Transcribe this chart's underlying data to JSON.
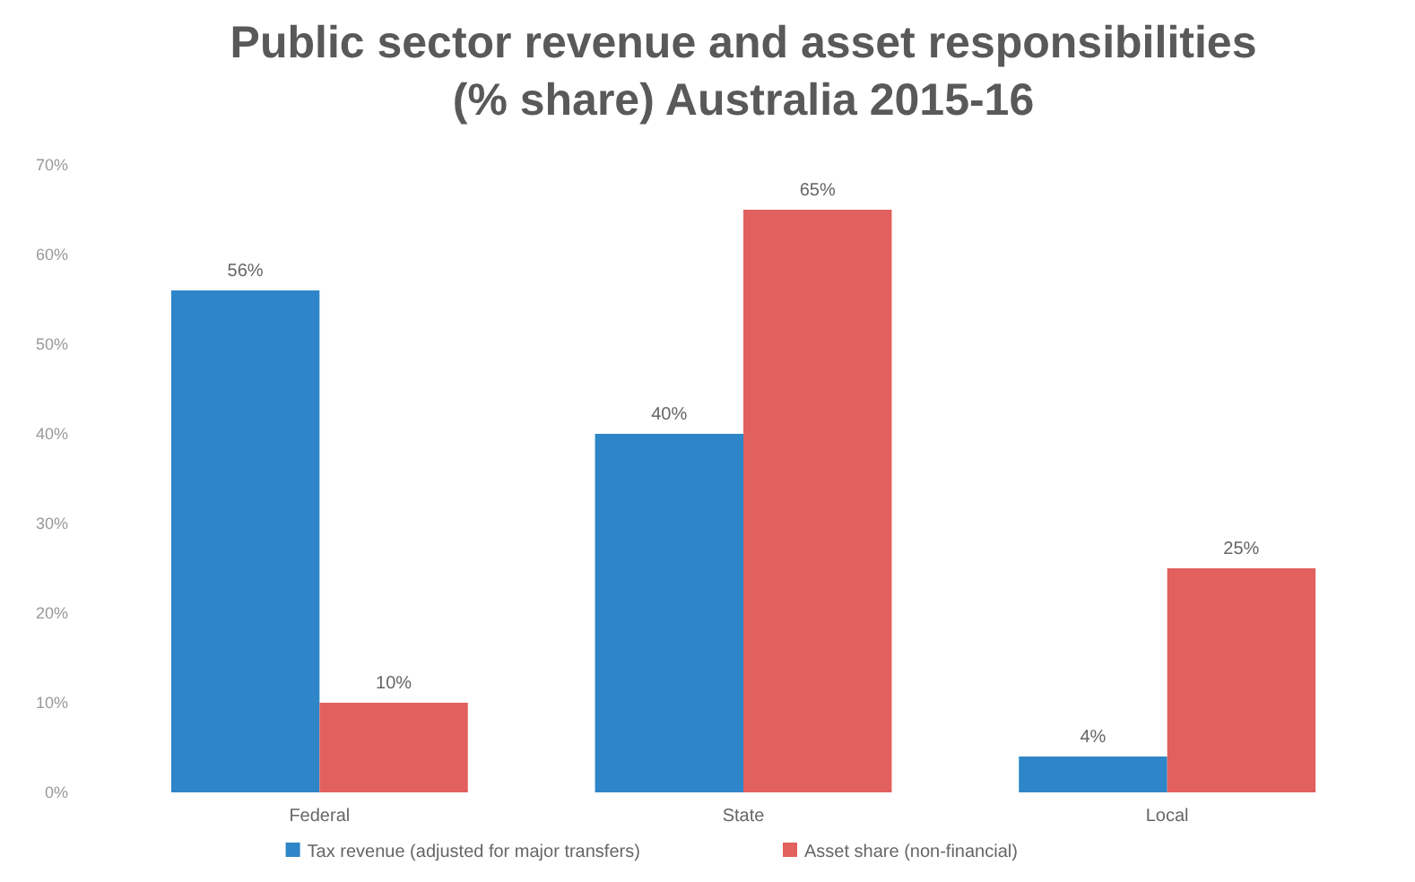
{
  "chart_data": {
    "type": "bar",
    "title": "Public sector revenue and asset responsibilities (% share) Australia 2015-16",
    "categories": [
      "Federal",
      "State",
      "Local"
    ],
    "series": [
      {
        "name": "Tax revenue (adjusted for major transfers)",
        "color": "#2e86c8",
        "values": [
          56,
          40,
          4
        ],
        "value_labels": [
          "56%",
          "40%",
          "4%"
        ]
      },
      {
        "name": "Asset share (non-financial)",
        "color": "#e2605e",
        "values": [
          10,
          65,
          25
        ],
        "value_labels": [
          "10%",
          "65%",
          "25%"
        ]
      }
    ],
    "ylim": [
      0,
      70
    ],
    "yticks": [
      {
        "value": 0,
        "label": "0%"
      },
      {
        "value": 10,
        "label": "10%"
      },
      {
        "value": 20,
        "label": "20%"
      },
      {
        "value": 30,
        "label": "30%"
      },
      {
        "value": 40,
        "label": "40%"
      },
      {
        "value": 50,
        "label": "50%"
      },
      {
        "value": 60,
        "label": "60%"
      },
      {
        "value": 70,
        "label": "70%"
      }
    ],
    "grid": false,
    "legend": "bottom"
  }
}
